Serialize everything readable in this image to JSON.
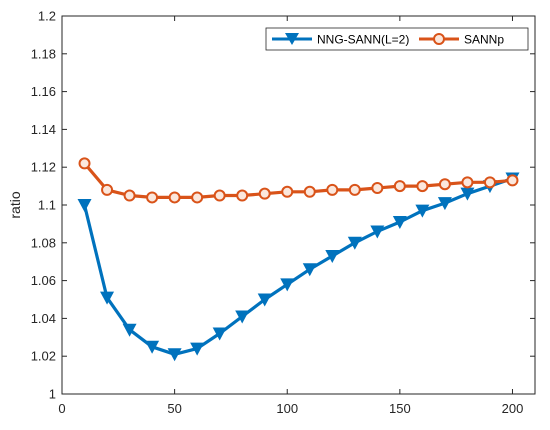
{
  "chart_data": {
    "type": "line",
    "title": "",
    "xlabel": "",
    "ylabel": "ratio",
    "xlim": [
      0,
      210
    ],
    "ylim": [
      1,
      1.2
    ],
    "xticks": [
      0,
      50,
      100,
      150,
      200
    ],
    "xtick_labels": [
      "0",
      "50",
      "100",
      "150",
      "200"
    ],
    "yticks": [
      1,
      1.02,
      1.04,
      1.06,
      1.08,
      1.1,
      1.12,
      1.14,
      1.16,
      1.18,
      1.2
    ],
    "ytick_labels": [
      "1",
      "1.02",
      "1.04",
      "1.06",
      "1.08",
      "1.1",
      "1.12",
      "1.14",
      "1.16",
      "1.18",
      "1.2"
    ],
    "grid": false,
    "legend_position": "top-right",
    "x": [
      10,
      20,
      30,
      40,
      50,
      60,
      70,
      80,
      90,
      100,
      110,
      120,
      130,
      140,
      150,
      160,
      170,
      180,
      190,
      200
    ],
    "series": [
      {
        "name": "NNG-SANN(L=2)",
        "color": "#0072BD",
        "marker": "triangle-down",
        "values": [
          1.1,
          1.051,
          1.034,
          1.025,
          1.021,
          1.024,
          1.032,
          1.041,
          1.05,
          1.058,
          1.066,
          1.073,
          1.08,
          1.086,
          1.091,
          1.097,
          1.101,
          1.106,
          1.11,
          1.114
        ]
      },
      {
        "name": "SANNp",
        "color": "#D95319",
        "marker": "circle",
        "values": [
          1.122,
          1.108,
          1.105,
          1.104,
          1.104,
          1.104,
          1.105,
          1.105,
          1.106,
          1.107,
          1.107,
          1.108,
          1.108,
          1.109,
          1.11,
          1.11,
          1.111,
          1.112,
          1.112,
          1.113
        ]
      }
    ]
  }
}
